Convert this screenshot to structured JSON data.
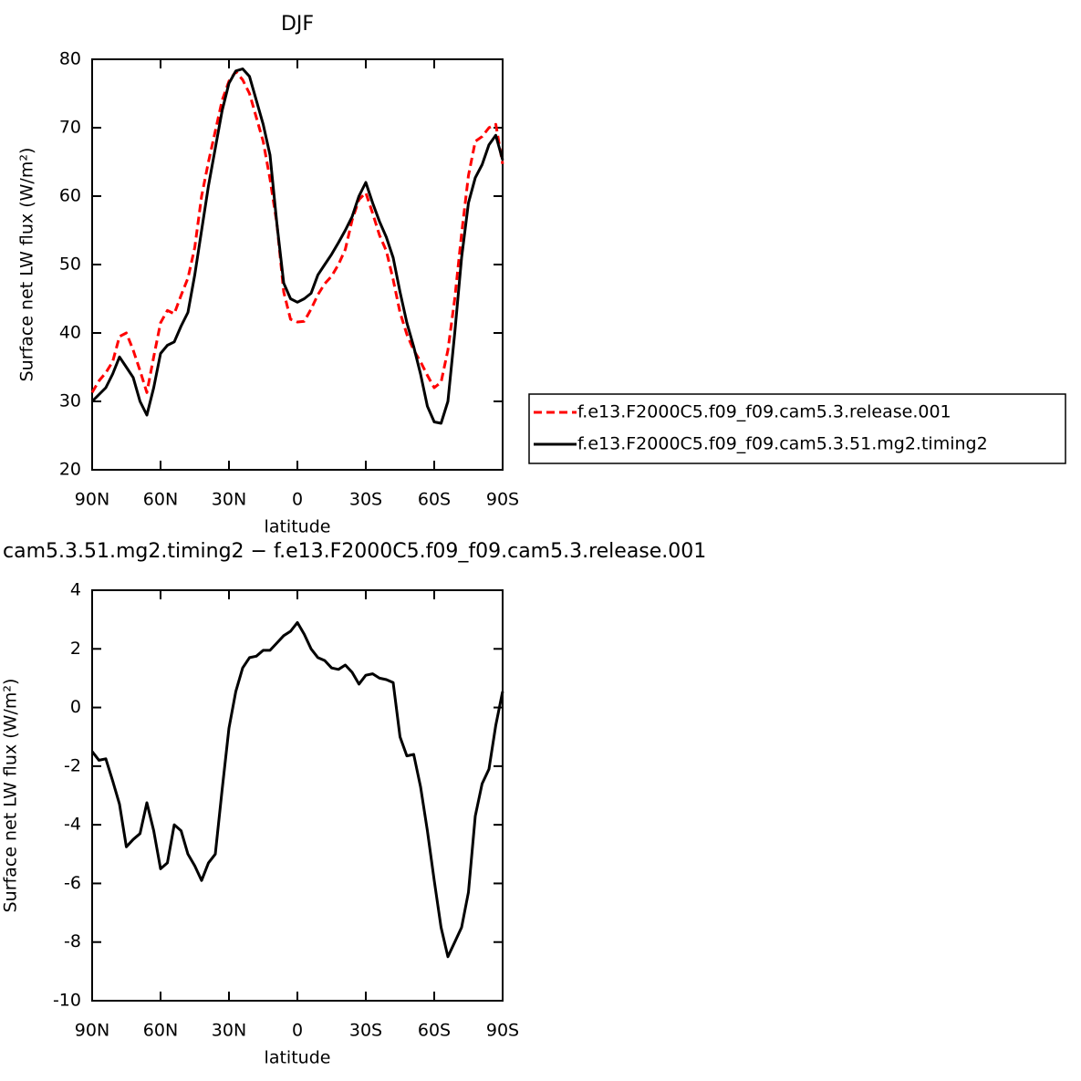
{
  "chart_data": [
    {
      "type": "line",
      "title": "DJF",
      "x_label": "latitude",
      "y_label": "Surface net LW flux (W/m²)",
      "x": [
        90,
        87,
        84,
        81,
        78,
        75,
        72,
        69,
        66,
        63,
        60,
        57,
        54,
        51,
        48,
        45,
        42,
        39,
        36,
        33,
        30,
        27,
        24,
        21,
        18,
        15,
        12,
        9,
        6,
        3,
        0,
        -3,
        -6,
        -9,
        -12,
        -15,
        -18,
        -21,
        -24,
        -27,
        -30,
        -33,
        -36,
        -39,
        -42,
        -45,
        -48,
        -51,
        -54,
        -57,
        -60,
        -63,
        -66,
        -69,
        -72,
        -75,
        -78,
        -81,
        -84,
        -87,
        -90
      ],
      "series": [
        {
          "name": "f.e13.F2000C5.f09_f09.cam5.3.release.001",
          "color": "#ff0000",
          "dashed": true,
          "values": [
            31.3,
            33,
            34.2,
            35.8,
            39.5,
            40,
            37.5,
            34.5,
            31.3,
            36.5,
            41.5,
            43.3,
            42.8,
            45.5,
            48,
            52.5,
            60,
            65,
            69.5,
            74,
            76.8,
            78.2,
            77,
            75,
            71.5,
            68,
            62.5,
            56,
            46,
            42,
            41.6,
            41.7,
            43.5,
            45.6,
            47.2,
            48.3,
            50,
            52.2,
            56.5,
            59.5,
            60.5,
            57.5,
            54.3,
            52,
            47.8,
            43,
            39.8,
            37.5,
            35.8,
            33.8,
            32,
            32.8,
            37.5,
            45,
            54.5,
            63,
            68,
            68.7,
            70,
            70.5,
            64.7
          ]
        },
        {
          "name": "f.e13.F2000C5.f09_f09.cam5.3.51.mg2.timing2",
          "color": "#000000",
          "dashed": false,
          "values": [
            30,
            31,
            32,
            34,
            36.5,
            35,
            33.5,
            30,
            28,
            32,
            37,
            38.2,
            38.7,
            41,
            43,
            48.5,
            55,
            61.5,
            67,
            72.5,
            76.5,
            78.3,
            78.6,
            77.5,
            74,
            70.5,
            66,
            56,
            47.3,
            45,
            44.5,
            45,
            45.8,
            48.5,
            50,
            51.5,
            53.2,
            55,
            57,
            60,
            62,
            59,
            56.3,
            54,
            51,
            46,
            41.5,
            38,
            34,
            29.3,
            27,
            26.8,
            30,
            40,
            51,
            59,
            62.7,
            64.6,
            67.5,
            68.9,
            65.3
          ]
        }
      ],
      "xlim": [
        90,
        -90
      ],
      "xticks": [
        {
          "value": 90,
          "label": "90N"
        },
        {
          "value": 60,
          "label": "60N"
        },
        {
          "value": 30,
          "label": "30N"
        },
        0,
        {
          "value": -30,
          "label": "30S"
        },
        {
          "value": -60,
          "label": "60S"
        },
        {
          "value": -90,
          "label": "90S"
        }
      ],
      "ylim": [
        20,
        80
      ],
      "yticks": [
        20,
        30,
        40,
        50,
        60,
        70,
        80
      ],
      "legend": "right"
    },
    {
      "type": "line",
      "title": "cam5.3.51.mg2.timing2 − f.e13.F2000C5.f09_f09.cam5.3.release.001",
      "x_label": "latitude",
      "y_label": "Surface net LW flux (W/m²)",
      "x": [
        90,
        87,
        84,
        81,
        78,
        75,
        72,
        69,
        66,
        63,
        60,
        57,
        54,
        51,
        48,
        45,
        42,
        39,
        36,
        33,
        30,
        27,
        24,
        21,
        18,
        15,
        12,
        9,
        6,
        3,
        0,
        -3,
        -6,
        -9,
        -12,
        -15,
        -18,
        -21,
        -24,
        -27,
        -30,
        -33,
        -36,
        -39,
        -42,
        -45,
        -48,
        -51,
        -54,
        -57,
        -60,
        -63,
        -66,
        -69,
        -72,
        -75,
        -78,
        -81,
        -84,
        -87,
        -90
      ],
      "series": [
        {
          "color": "#000000",
          "dashed": false,
          "values": [
            -1.5,
            -1.8,
            -1.75,
            -2.5,
            -3.3,
            -4.75,
            -4.5,
            -4.3,
            -3.25,
            -4.2,
            -5.5,
            -5.3,
            -4.0,
            -4.2,
            -5.0,
            -5.4,
            -5.9,
            -5.3,
            -5.0,
            -2.8,
            -0.7,
            0.55,
            1.35,
            1.7,
            1.75,
            1.95,
            1.95,
            2.2,
            2.45,
            2.6,
            2.9,
            2.5,
            2.0,
            1.7,
            1.6,
            1.35,
            1.3,
            1.45,
            1.2,
            0.8,
            1.1,
            1.15,
            1.0,
            0.95,
            0.85,
            -1.0,
            -1.65,
            -1.6,
            -2.7,
            -4.2,
            -5.9,
            -7.5,
            -8.5,
            -8.0,
            -7.5,
            -6.3,
            -3.7,
            -2.6,
            -2.1,
            -0.6,
            0.55
          ]
        }
      ],
      "xlim": [
        90,
        -90
      ],
      "xticks": [
        {
          "value": 90,
          "label": "90N"
        },
        {
          "value": 60,
          "label": "60N"
        },
        {
          "value": 30,
          "label": "30N"
        },
        0,
        {
          "value": -30,
          "label": "30S"
        },
        {
          "value": -60,
          "label": "60S"
        },
        {
          "value": -90,
          "label": "90S"
        }
      ],
      "ylim": [
        -10,
        4
      ],
      "yticks": [
        -10,
        -8,
        -6,
        -4,
        -2,
        0,
        2,
        4
      ]
    }
  ]
}
